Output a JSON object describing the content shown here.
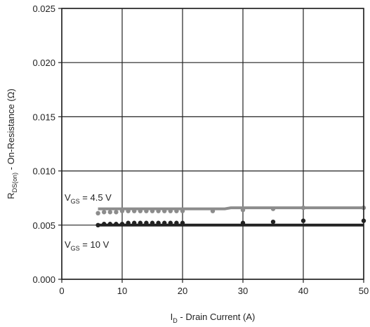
{
  "chart_data": {
    "type": "line",
    "title": "",
    "xlabel": {
      "main": "I",
      "sub": "D",
      "rest": " - Drain Current (A)"
    },
    "ylabel": {
      "main": "R",
      "sub": "DS(on)",
      "rest": " - On-Resistance (Ω)"
    },
    "xlim": [
      0,
      50
    ],
    "ylim": [
      0,
      0.025
    ],
    "x_ticks": [
      "0",
      "10",
      "20",
      "30",
      "40",
      "50"
    ],
    "y_ticks": [
      "0.000",
      "0.005",
      "0.010",
      "0.015",
      "0.020",
      "0.025"
    ],
    "grid": true,
    "series": [
      {
        "name": "VGS = 4.5 V",
        "color": "#8c8c8c",
        "annotation": {
          "main": "V",
          "sub": "GS",
          "rest": " = 4.5 V"
        },
        "line": {
          "x": [
            6,
            20,
            27,
            28,
            50
          ],
          "y": [
            0.0065,
            0.0065,
            0.0065,
            0.0066,
            0.0066
          ]
        },
        "points": {
          "x": [
            6,
            7,
            8,
            9,
            10,
            11,
            12,
            13,
            14,
            15,
            16,
            17,
            18,
            19,
            20,
            25,
            30,
            35,
            40,
            50
          ],
          "y": [
            0.0061,
            0.0062,
            0.0062,
            0.0062,
            0.0063,
            0.0063,
            0.0063,
            0.0063,
            0.0063,
            0.0063,
            0.0063,
            0.0063,
            0.0063,
            0.0063,
            0.0063,
            0.0063,
            0.0064,
            0.0065,
            0.0066,
            0.0066
          ]
        }
      },
      {
        "name": "VGS = 10 V",
        "color": "#222222",
        "annotation": {
          "main": "V",
          "sub": "GS",
          "rest": " = 10 V"
        },
        "line": {
          "x": [
            6,
            50
          ],
          "y": [
            0.005,
            0.005
          ]
        },
        "points": {
          "x": [
            6,
            7,
            8,
            9,
            10,
            11,
            12,
            13,
            14,
            15,
            16,
            17,
            18,
            19,
            20,
            30,
            35,
            40,
            50
          ],
          "y": [
            0.005,
            0.0051,
            0.0051,
            0.0051,
            0.0051,
            0.0052,
            0.0052,
            0.0052,
            0.0052,
            0.0052,
            0.0052,
            0.0052,
            0.0052,
            0.0052,
            0.0052,
            0.0052,
            0.0053,
            0.0054,
            0.0054
          ]
        }
      }
    ]
  }
}
